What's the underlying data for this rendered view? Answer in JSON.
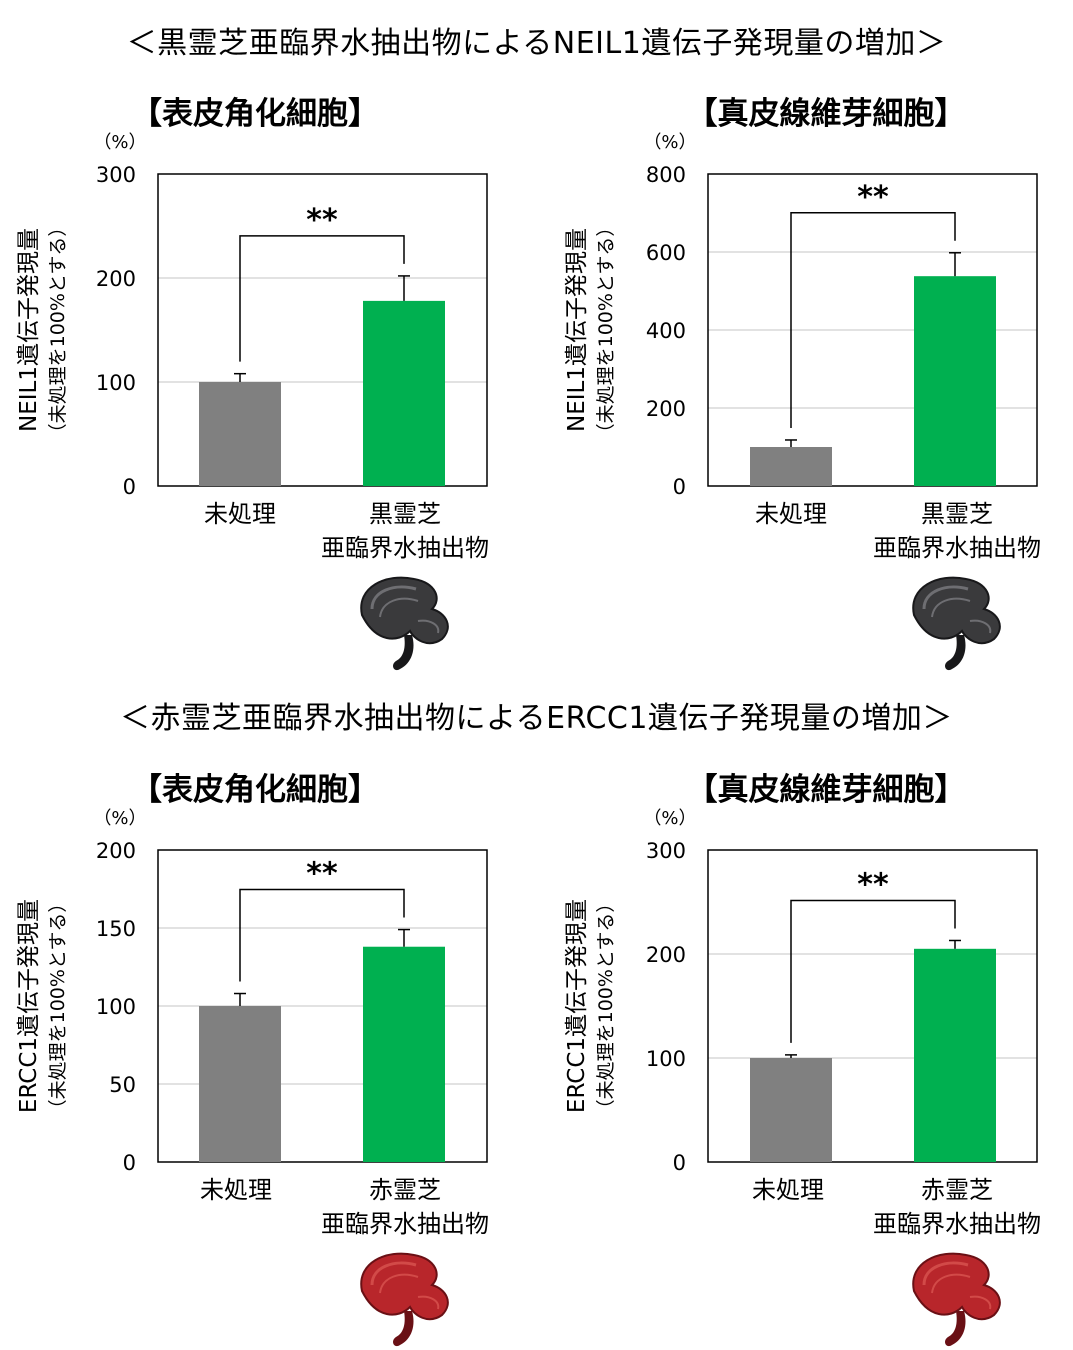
{
  "sections": [
    {
      "title": "＜黒霊芝亜臨界水抽出物によるNEIL1遺伝子発現量の増加＞"
    },
    {
      "title": "＜赤霊芝亜臨界水抽出物によるERCC1遺伝子発現量の増加＞"
    }
  ],
  "colors": {
    "control": "#808080",
    "treated": "#00b050",
    "grid": "#d9d9d9",
    "axis": "#000000"
  },
  "chart_data": [
    {
      "type": "bar",
      "title": "【表皮角化細胞】",
      "unit": "（%）",
      "ylabel": "NEIL1遺伝子発現量",
      "ylabel2": "（未処理を100%とする）",
      "ylim": [
        0,
        300
      ],
      "yticks": [
        0,
        100,
        200,
        300
      ],
      "categories": [
        "未処理",
        "黒霊芝\n亜臨界水抽出物"
      ],
      "values": [
        100,
        178
      ],
      "errors": [
        8,
        24
      ],
      "significance": "**",
      "grid": true,
      "image": "black-reishi-mushroom"
    },
    {
      "type": "bar",
      "title": "【真皮線維芽細胞】",
      "unit": "（%）",
      "ylabel": "NEIL1遺伝子発現量",
      "ylabel2": "（未処理を100%とする）",
      "ylim": [
        0,
        800
      ],
      "yticks": [
        0,
        200,
        400,
        600,
        800
      ],
      "categories": [
        "未処理",
        "黒霊芝\n亜臨界水抽出物"
      ],
      "values": [
        100,
        538
      ],
      "errors": [
        18,
        60
      ],
      "significance": "**",
      "grid": true,
      "image": "black-reishi-mushroom"
    },
    {
      "type": "bar",
      "title": "【表皮角化細胞】",
      "unit": "（%）",
      "ylabel": "ERCC1遺伝子発現量",
      "ylabel2": "（未処理を100%とする）",
      "ylim": [
        0,
        200
      ],
      "yticks": [
        0,
        50,
        100,
        150,
        200
      ],
      "categories": [
        "未処理",
        "赤霊芝\n亜臨界水抽出物"
      ],
      "values": [
        100,
        138
      ],
      "errors": [
        8,
        11
      ],
      "significance": "**",
      "grid": true,
      "image": "red-reishi-mushroom"
    },
    {
      "type": "bar",
      "title": "【真皮線維芽細胞】",
      "unit": "（%）",
      "ylabel": "ERCC1遺伝子発現量",
      "ylabel2": "（未処理を100%とする）",
      "ylim": [
        0,
        300
      ],
      "yticks": [
        0,
        100,
        200,
        300
      ],
      "categories": [
        "未処理",
        "赤霊芝\n亜臨界水抽出物"
      ],
      "values": [
        100,
        205
      ],
      "errors": [
        3,
        8
      ],
      "significance": "**",
      "grid": true,
      "image": "red-reishi-mushroom"
    }
  ]
}
